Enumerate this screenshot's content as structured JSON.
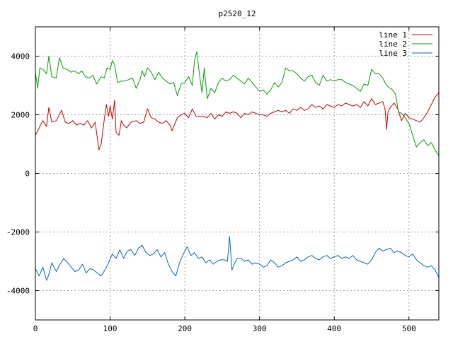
{
  "chart_data": {
    "type": "line",
    "title": "p2520_12",
    "xlabel": "",
    "ylabel": "",
    "xlim": [
      0,
      540
    ],
    "ylim": [
      -5000,
      5000
    ],
    "x_ticks": [
      "0",
      "100",
      "200",
      "300",
      "400",
      "500"
    ],
    "y_ticks": [
      "-4000",
      "-2000",
      "0",
      "2000",
      "4000"
    ],
    "grid": true,
    "legend_position": "top-right",
    "series": [
      {
        "name": "line 1",
        "color": "#cc0000",
        "x": [
          0,
          5,
          10,
          15,
          18,
          22,
          28,
          35,
          40,
          45,
          50,
          55,
          60,
          65,
          70,
          75,
          80,
          83,
          85,
          88,
          92,
          95,
          98,
          100,
          103,
          106,
          108,
          112,
          115,
          118,
          122,
          128,
          135,
          140,
          145,
          150,
          155,
          160,
          165,
          170,
          175,
          180,
          183,
          186,
          190,
          195,
          200,
          205,
          210,
          215,
          220,
          225,
          230,
          235,
          240,
          245,
          250,
          255,
          260,
          265,
          270,
          275,
          280,
          285,
          290,
          295,
          300,
          305,
          310,
          315,
          320,
          325,
          330,
          335,
          340,
          345,
          350,
          355,
          360,
          365,
          370,
          375,
          380,
          385,
          390,
          395,
          400,
          405,
          410,
          415,
          420,
          425,
          430,
          435,
          440,
          445,
          450,
          455,
          460,
          465,
          468,
          470,
          472,
          475,
          480,
          485,
          490,
          495,
          500,
          505,
          510,
          515,
          520,
          525,
          530,
          535,
          540
        ],
        "values": [
          1300,
          1550,
          1800,
          1600,
          2250,
          1750,
          1800,
          2150,
          1750,
          1700,
          1800,
          1650,
          1700,
          1650,
          1800,
          1550,
          1750,
          1200,
          800,
          1000,
          1800,
          2350,
          1950,
          2300,
          1850,
          2500,
          1400,
          1300,
          1800,
          1650,
          1550,
          1750,
          1800,
          1700,
          1750,
          2200,
          1900,
          1850,
          1750,
          1700,
          1800,
          1650,
          1450,
          1650,
          1900,
          2000,
          2050,
          1900,
          2200,
          1950,
          1950,
          1950,
          1900,
          2050,
          1850,
          2000,
          1950,
          2100,
          2050,
          2100,
          2050,
          1900,
          2050,
          2000,
          2100,
          2050,
          2000,
          2000,
          1950,
          2050,
          2100,
          2150,
          2100,
          2150,
          2050,
          2200,
          2150,
          2250,
          2150,
          2200,
          2350,
          2250,
          2300,
          2200,
          2350,
          2300,
          2250,
          2350,
          2300,
          2400,
          2350,
          2300,
          2350,
          2250,
          2450,
          2300,
          2550,
          2350,
          2400,
          2450,
          2200,
          1500,
          2100,
          2250,
          2400,
          2200,
          1800,
          2050,
          1900,
          1850,
          1800,
          1750,
          1900,
          2100,
          2350,
          2600,
          2750
        ]
      },
      {
        "name": "line 2",
        "color": "#00a000",
        "x": [
          0,
          3,
          6,
          10,
          15,
          18,
          22,
          28,
          32,
          37,
          42,
          48,
          52,
          58,
          62,
          67,
          72,
          77,
          82,
          88,
          92,
          96,
          100,
          103,
          106,
          110,
          115,
          120,
          125,
          130,
          135,
          140,
          143,
          146,
          150,
          155,
          160,
          165,
          170,
          175,
          180,
          185,
          190,
          195,
          200,
          205,
          210,
          213,
          216,
          220,
          223,
          226,
          230,
          235,
          240,
          245,
          250,
          255,
          260,
          265,
          270,
          275,
          280,
          285,
          290,
          295,
          300,
          305,
          310,
          315,
          320,
          325,
          330,
          335,
          340,
          345,
          350,
          355,
          360,
          365,
          370,
          375,
          380,
          385,
          390,
          395,
          400,
          405,
          410,
          415,
          420,
          425,
          430,
          435,
          440,
          445,
          450,
          455,
          460,
          465,
          470,
          475,
          478,
          482,
          486,
          490,
          495,
          500,
          505,
          510,
          515,
          520,
          525,
          530,
          535,
          540
        ],
        "values": [
          3450,
          2900,
          3600,
          3550,
          3400,
          4000,
          3300,
          3250,
          3950,
          3600,
          3550,
          3450,
          3500,
          3400,
          3500,
          3300,
          3250,
          3350,
          3050,
          3300,
          3250,
          3600,
          3550,
          3850,
          3700,
          3100,
          3150,
          3150,
          3200,
          3250,
          2900,
          3200,
          3500,
          3300,
          3600,
          3450,
          3200,
          3450,
          3250,
          3150,
          3050,
          3100,
          2650,
          3050,
          3100,
          3300,
          3000,
          3850,
          4150,
          3300,
          2750,
          3600,
          2550,
          2900,
          2750,
          3100,
          3250,
          3150,
          3200,
          3350,
          3250,
          3150,
          3050,
          3250,
          3100,
          2950,
          2800,
          2850,
          2700,
          2850,
          3100,
          2950,
          3100,
          3600,
          3500,
          3500,
          3400,
          3250,
          3150,
          3300,
          3350,
          3100,
          3000,
          3350,
          3150,
          3200,
          3150,
          3200,
          3200,
          3100,
          3050,
          3000,
          2900,
          2800,
          3050,
          3000,
          3550,
          3400,
          3400,
          3250,
          3000,
          2900,
          2850,
          2700,
          2100,
          2050,
          1900,
          1700,
          1300,
          900,
          1050,
          1150,
          950,
          1050,
          800,
          600
        ]
      },
      {
        "name": "line 3",
        "color": "#0066cc",
        "x": [
          0,
          5,
          10,
          15,
          18,
          22,
          28,
          33,
          38,
          43,
          48,
          53,
          58,
          63,
          68,
          73,
          78,
          83,
          88,
          93,
          98,
          103,
          108,
          113,
          118,
          123,
          128,
          133,
          138,
          143,
          148,
          153,
          158,
          163,
          168,
          173,
          178,
          183,
          188,
          193,
          198,
          203,
          208,
          213,
          218,
          223,
          228,
          233,
          238,
          243,
          248,
          253,
          257,
          260,
          263,
          266,
          270,
          275,
          280,
          285,
          290,
          295,
          300,
          305,
          310,
          315,
          320,
          325,
          330,
          335,
          340,
          345,
          350,
          355,
          360,
          365,
          370,
          375,
          380,
          385,
          390,
          395,
          400,
          405,
          410,
          415,
          420,
          425,
          430,
          435,
          440,
          445,
          450,
          455,
          460,
          465,
          470,
          475,
          480,
          485,
          490,
          495,
          500,
          505,
          510,
          515,
          520,
          525,
          530,
          535,
          540
        ],
        "values": [
          -3250,
          -3500,
          -3200,
          -3650,
          -3450,
          -3050,
          -3350,
          -3100,
          -2900,
          -3050,
          -3200,
          -3350,
          -3300,
          -3100,
          -3400,
          -3250,
          -3300,
          -3400,
          -3500,
          -3300,
          -3050,
          -2750,
          -2900,
          -2600,
          -2900,
          -2650,
          -2600,
          -2800,
          -2550,
          -2450,
          -2700,
          -2800,
          -2750,
          -2600,
          -2850,
          -2700,
          -3100,
          -3350,
          -3500,
          -3050,
          -2750,
          -2500,
          -2800,
          -2700,
          -2900,
          -2850,
          -3050,
          -2950,
          -3100,
          -3000,
          -2950,
          -2950,
          -3000,
          -2150,
          -3300,
          -3100,
          -2900,
          -2900,
          -3000,
          -2950,
          -3100,
          -3050,
          -3100,
          -3200,
          -3150,
          -2950,
          -3050,
          -3200,
          -3150,
          -3050,
          -3000,
          -2950,
          -2850,
          -3000,
          -2950,
          -2850,
          -2800,
          -2900,
          -2950,
          -2850,
          -2800,
          -2900,
          -2850,
          -2800,
          -2900,
          -2850,
          -2900,
          -2800,
          -2950,
          -3000,
          -3050,
          -3100,
          -2950,
          -2700,
          -2550,
          -2650,
          -2600,
          -2550,
          -2700,
          -2650,
          -2700,
          -2800,
          -2850,
          -2750,
          -2950,
          -3050,
          -3150,
          -3200,
          -3150,
          -3300,
          -3550
        ]
      }
    ]
  }
}
